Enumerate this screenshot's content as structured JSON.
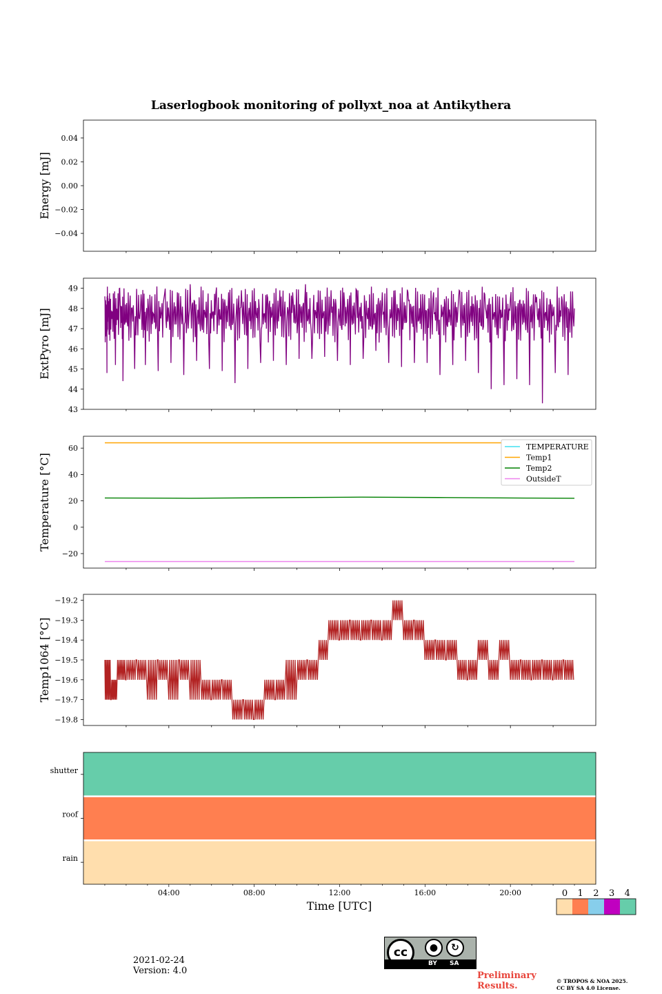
{
  "figure": {
    "title": "Laserlogbook monitoring of pollyxt_noa at Antikythera",
    "xlabel": "Time [UTC]",
    "xticks": [
      "04:00",
      "08:00",
      "12:00",
      "16:00",
      "20:00"
    ],
    "date": "2021-02-24",
    "version": "Version: 4.0",
    "preliminary": [
      "Preliminary",
      "Results."
    ],
    "copyright": [
      "© TROPOS & NOA 2025.",
      "CC BY SA 4.0 License."
    ],
    "license_badge": {
      "cc": "cc",
      "by": "BY",
      "sa": "SA"
    }
  },
  "chart_data": [
    {
      "type": "line",
      "ylabel": "Energy [mJ]",
      "ylim": [
        -0.055,
        0.055
      ],
      "yticks": [
        0.04,
        0.02,
        0.0,
        -0.02,
        -0.04
      ],
      "ytick_labels": [
        "0.04",
        "0.02",
        "0.00",
        "−0.02",
        "−0.04"
      ],
      "series": []
    },
    {
      "type": "line",
      "ylabel": "ExtPyro [mJ]",
      "ylim": [
        43,
        49.5
      ],
      "yticks": [
        49,
        48,
        47,
        46,
        45,
        44,
        43
      ],
      "ytick_labels": [
        "49",
        "48",
        "47",
        "46",
        "45",
        "44",
        "43"
      ],
      "color": "#800080",
      "x_hours": [
        1.0,
        1.1,
        1.15,
        1.3,
        1.5,
        1.7,
        1.85,
        2.1,
        2.4,
        2.7,
        2.9,
        3.2,
        3.5,
        3.8,
        4.1,
        4.4,
        4.7,
        5.0,
        5.3,
        5.6,
        5.9,
        6.2,
        6.5,
        6.8,
        7.1,
        7.4,
        7.7,
        8.0,
        8.3,
        8.6,
        8.9,
        9.2,
        9.5,
        9.8,
        10.1,
        10.4,
        10.7,
        11.0,
        11.3,
        11.6,
        11.9,
        12.2,
        12.5,
        12.8,
        13.1,
        13.4,
        13.7,
        14.0,
        14.3,
        14.6,
        14.9,
        15.2,
        15.5,
        15.8,
        16.1,
        16.4,
        16.7,
        17.0,
        17.3,
        17.6,
        17.9,
        18.2,
        18.5,
        18.8,
        19.1,
        19.4,
        19.7,
        20.0,
        20.3,
        20.6,
        20.9,
        21.2,
        21.5,
        21.8,
        22.1,
        22.4,
        22.7,
        23.0
      ],
      "values": [
        48.6,
        44.8,
        48.5,
        47.9,
        45.2,
        49.0,
        44.4,
        48.8,
        45.0,
        48.7,
        45.2,
        48.6,
        44.9,
        48.7,
        45.3,
        48.8,
        44.7,
        49.2,
        45.4,
        48.9,
        45.0,
        48.7,
        44.9,
        48.8,
        44.3,
        48.9,
        45.0,
        49.0,
        45.3,
        48.7,
        45.4,
        48.9,
        45.2,
        48.8,
        45.5,
        49.2,
        45.5,
        48.9,
        45.6,
        48.9,
        45.4,
        48.8,
        45.2,
        48.9,
        45.5,
        48.7,
        45.9,
        48.8,
        45.3,
        48.9,
        45.1,
        48.8,
        45.3,
        48.7,
        45.3,
        48.8,
        44.7,
        48.6,
        45.2,
        48.9,
        45.4,
        48.6,
        44.8,
        48.7,
        44.0,
        48.6,
        44.2,
        48.5,
        44.5,
        48.4,
        44.2,
        48.3,
        43.3,
        48.2,
        44.8,
        48.6,
        44.7,
        48.0
      ]
    },
    {
      "type": "line",
      "ylabel": "Temperature [°C]",
      "ylim": [
        -31,
        69
      ],
      "yticks": [
        60,
        40,
        20,
        0,
        -20
      ],
      "ytick_labels": [
        "60",
        "40",
        "20",
        "0",
        "−20"
      ],
      "legend": "top-right",
      "series": [
        {
          "name": "TEMPERATURE",
          "color": "#40e0f0",
          "values": []
        },
        {
          "name": "Temp1",
          "color": "#ffa500",
          "values": [
            64,
            64,
            64,
            64,
            64,
            64,
            64
          ]
        },
        {
          "name": "Temp2",
          "color": "#008000",
          "values": [
            22.2,
            22.0,
            22.4,
            22.8,
            22.5,
            22.1,
            22.0
          ]
        },
        {
          "name": "OutsideT",
          "color": "#ee82ee",
          "values": [
            -26,
            -26,
            -26,
            -26,
            -26,
            -26,
            -26
          ]
        }
      ],
      "x_hours": [
        1,
        5,
        9,
        13,
        17,
        21,
        23
      ]
    },
    {
      "type": "line",
      "ylabel": "Temp1064 [°C]",
      "ylim": [
        -19.83,
        -19.17
      ],
      "yticks": [
        -19.2,
        -19.3,
        -19.4,
        -19.5,
        -19.6,
        -19.7,
        -19.8
      ],
      "ytick_labels": [
        "−19.2",
        "−19.3",
        "−19.4",
        "−19.5",
        "−19.6",
        "−19.7",
        "−19.8"
      ],
      "color": "#b22222",
      "x_hours": [
        1.0,
        1.3,
        1.6,
        2.0,
        2.5,
        3.0,
        3.5,
        4.0,
        4.5,
        5.0,
        5.5,
        6.0,
        6.5,
        7.0,
        7.5,
        8.0,
        8.5,
        9.0,
        9.5,
        10.0,
        10.5,
        11.0,
        11.5,
        12.0,
        12.5,
        13.0,
        13.5,
        14.0,
        14.5,
        15.0,
        15.5,
        16.0,
        16.5,
        17.0,
        17.5,
        18.0,
        18.5,
        19.0,
        19.5,
        20.0,
        20.5,
        21.0,
        21.5,
        22.0,
        22.5,
        23.0
      ],
      "values": [
        -19.6,
        -19.65,
        -19.55,
        -19.55,
        -19.55,
        -19.6,
        -19.55,
        -19.6,
        -19.55,
        -19.6,
        -19.65,
        -19.65,
        -19.7,
        -19.75,
        -19.75,
        -19.75,
        -19.7,
        -19.65,
        -19.6,
        -19.55,
        -19.55,
        -19.45,
        -19.4,
        -19.35,
        -19.35,
        -19.35,
        -19.35,
        -19.35,
        -19.3,
        -19.35,
        -19.4,
        -19.45,
        -19.5,
        -19.5,
        -19.55,
        -19.55,
        -19.5,
        -19.55,
        -19.5,
        -19.55,
        -19.55,
        -19.55,
        -19.55,
        -19.55,
        -19.55,
        -19.55
      ]
    },
    {
      "type": "heatmap",
      "rows": [
        "shutter",
        "roof",
        "rain"
      ],
      "row_colors": [
        "#66cdaa",
        "#ff7f50",
        "#ffdead"
      ],
      "colorbar": {
        "labels": [
          "0",
          "1",
          "2",
          "3",
          "4"
        ],
        "colors": [
          "#ffdead",
          "#ff7f50",
          "#87ceeb",
          "#c000c0",
          "#66cdaa"
        ]
      }
    }
  ]
}
